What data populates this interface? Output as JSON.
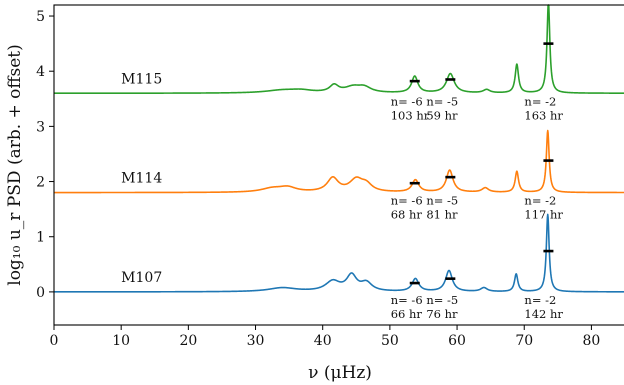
{
  "chart_data": {
    "type": "line",
    "xlabel": "ν (μHz)",
    "ylabel": "log₁₀ u_r PSD (arb. + offset)",
    "xlim": [
      0,
      85
    ],
    "ylim": [
      -0.6,
      5.2
    ],
    "xticks": [
      0,
      10,
      20,
      30,
      40,
      50,
      60,
      70,
      80
    ],
    "yticks": [
      0,
      1,
      2,
      3,
      4,
      5
    ],
    "grid": false,
    "series": [
      {
        "name": "M115",
        "color": "#2ca02c",
        "baseline": 3.6,
        "label_x": 10,
        "peaks": [
          [
            34,
            0.05,
            3.0
          ],
          [
            36.8,
            0.04,
            2.0
          ],
          [
            41.7,
            0.13,
            0.8
          ],
          [
            44.5,
            0.1,
            1.5
          ],
          [
            46.2,
            0.09,
            1.2
          ],
          [
            53.7,
            0.3,
            0.55
          ],
          [
            59.0,
            0.35,
            0.7
          ],
          [
            64.4,
            0.06,
            0.6
          ],
          [
            68.9,
            0.52,
            0.3
          ],
          [
            73.6,
            1.65,
            0.25
          ]
        ],
        "annotations": [
          {
            "x": 53.7,
            "y": 3.82,
            "n": "n= -6",
            "t": "103 hr"
          },
          {
            "x": 59.0,
            "y": 3.85,
            "n": "n= -5",
            "t": "59 hr"
          },
          {
            "x": 73.6,
            "y": 4.5,
            "n": "n= -2",
            "t": "163 hr"
          }
        ]
      },
      {
        "name": "M114",
        "color": "#ff7f0e",
        "baseline": 1.8,
        "label_x": 10,
        "peaks": [
          [
            32.5,
            0.07,
            2.0
          ],
          [
            34.8,
            0.08,
            1.5
          ],
          [
            41.5,
            0.25,
            1.0
          ],
          [
            45.0,
            0.22,
            1.2
          ],
          [
            46.5,
            0.12,
            1.0
          ],
          [
            53.8,
            0.22,
            0.6
          ],
          [
            58.9,
            0.4,
            0.6
          ],
          [
            64.2,
            0.08,
            0.6
          ],
          [
            68.9,
            0.38,
            0.3
          ],
          [
            73.5,
            1.12,
            0.25
          ]
        ],
        "annotations": [
          {
            "x": 53.7,
            "y": 1.97,
            "n": "n= -6",
            "t": "68 hr"
          },
          {
            "x": 59.0,
            "y": 2.08,
            "n": "n= -5",
            "t": "81 hr"
          },
          {
            "x": 73.6,
            "y": 2.38,
            "n": "n= -2",
            "t": "117 hr"
          }
        ]
      },
      {
        "name": "M107",
        "color": "#1f77b4",
        "baseline": 0.0,
        "label_x": 10,
        "peaks": [
          [
            34.0,
            0.07,
            2.5
          ],
          [
            41.5,
            0.18,
            1.3
          ],
          [
            44.3,
            0.28,
            0.9
          ],
          [
            46.5,
            0.15,
            1.0
          ],
          [
            53.8,
            0.23,
            0.6
          ],
          [
            58.8,
            0.38,
            0.6
          ],
          [
            64.0,
            0.07,
            0.6
          ],
          [
            68.8,
            0.32,
            0.3
          ],
          [
            73.5,
            1.4,
            0.25
          ]
        ],
        "annotations": [
          {
            "x": 53.7,
            "y": 0.16,
            "n": "n= -6",
            "t": "66 hr"
          },
          {
            "x": 59.0,
            "y": 0.24,
            "n": "n= -5",
            "t": "76 hr"
          },
          {
            "x": 73.6,
            "y": 0.74,
            "n": "n= -2",
            "t": "142 hr"
          }
        ]
      }
    ]
  }
}
